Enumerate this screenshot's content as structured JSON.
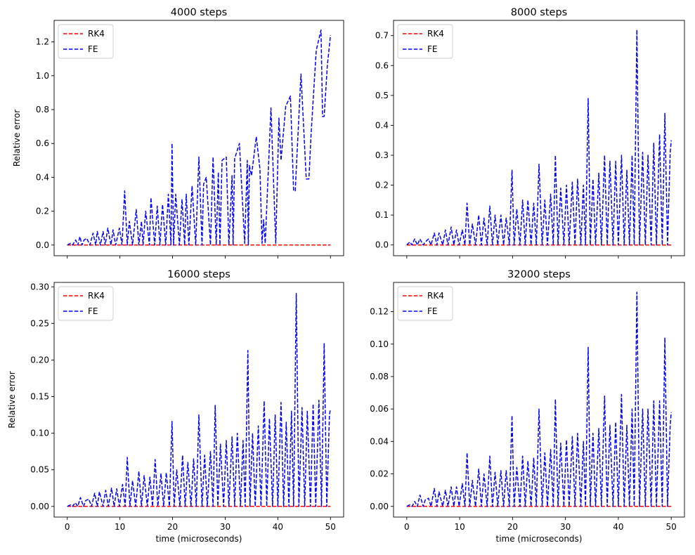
{
  "chart_data": [
    {
      "type": "line",
      "title": "4000 steps",
      "xlabel": "",
      "ylabel": "Relative error",
      "xlim": [
        -2.5,
        52.5
      ],
      "ylim": [
        -0.063,
        1.327
      ],
      "xticks": [
        0,
        10,
        20,
        30,
        40,
        50
      ],
      "xticklabels_visible": false,
      "yticks": [
        0.0,
        0.2,
        0.4,
        0.6,
        0.8,
        1.0,
        1.2
      ],
      "yticklabels": [
        "0.0",
        "0.2",
        "0.4",
        "0.6",
        "0.8",
        "1.0",
        "1.2"
      ],
      "legend_position": "top-left",
      "series": [
        {
          "name": "RK4",
          "color": "#ff0000",
          "style": "dashed",
          "x": [
            0,
            50
          ],
          "y": [
            0,
            0
          ]
        },
        {
          "name": "FE",
          "color": "#0000ff",
          "style": "dashed",
          "x": [
            0,
            0.6,
            1.0,
            1.6,
            2.0,
            2.4,
            2.8,
            3.2,
            3.7,
            4.3,
            4.9,
            5.4,
            5.7,
            6.3,
            6.8,
            7.2,
            7.7,
            8.3,
            8.7,
            9.2,
            9.9,
            10.4,
            10.9,
            11.4,
            11.8,
            12.4,
            13.1,
            13.6,
            14.1,
            14.4,
            14.9,
            15.6,
            15.9,
            16.6,
            17.1,
            17.6,
            18.1,
            18.7,
            19.2,
            19.7,
            19.9,
            20.2,
            20.6,
            21.3,
            21.8,
            22.3,
            22.6,
            23.1,
            23.7,
            24.4,
            25.0,
            25.6,
            25.9,
            26.4,
            27.2,
            27.7,
            28.3,
            28.7,
            29.0,
            29.4,
            30.2,
            30.7,
            31.3,
            31.5,
            31.8,
            32.7,
            33.7,
            34.2,
            34.4,
            34.6,
            35.0,
            35.9,
            36.6,
            37.0,
            37.3,
            37.6,
            38.7,
            39.6,
            40.2,
            40.6,
            41.5,
            42.4,
            43.0,
            43.3,
            44.4,
            45.4,
            45.9,
            46.3,
            47.3,
            48.2,
            48.5,
            48.8,
            49.4,
            50.0
          ],
          "y": [
            0,
            0.01,
            0.0,
            0.03,
            0.0,
            0.05,
            0.0,
            0.03,
            0.04,
            0.0,
            0.07,
            0.0,
            0.08,
            0.0,
            0.08,
            0.0,
            0.1,
            0.0,
            0.09,
            0.0,
            0.1,
            0.0,
            0.32,
            0.0,
            0.14,
            0.0,
            0.21,
            0.0,
            0.14,
            0.0,
            0.2,
            0.0,
            0.28,
            0.0,
            0.23,
            0.0,
            0.24,
            0.0,
            0.3,
            0.0,
            0.6,
            0.0,
            0.3,
            0.0,
            0.27,
            0.0,
            0.3,
            0.0,
            0.35,
            0.0,
            0.52,
            0.0,
            0.36,
            0.4,
            0.0,
            0.52,
            0.0,
            0.43,
            0.0,
            0.5,
            0.52,
            0.0,
            0.41,
            0.0,
            0.51,
            0.6,
            0.01,
            0.5,
            0.0,
            0.47,
            0.41,
            0.64,
            0.45,
            0.01,
            0.15,
            0.01,
            0.81,
            0.01,
            0.75,
            0.5,
            0.82,
            0.88,
            0.32,
            0.32,
            1.01,
            0.39,
            0.39,
            0.65,
            1.15,
            1.27,
            0.76,
            0.76,
            1.06,
            1.24
          ]
        }
      ]
    },
    {
      "type": "line",
      "title": "8000 steps",
      "xlabel": "",
      "ylabel": "",
      "xlim": [
        -2.5,
        52.5
      ],
      "ylim": [
        -0.036,
        0.751
      ],
      "xticks": [
        0,
        10,
        20,
        30,
        40,
        50
      ],
      "xticklabels_visible": false,
      "yticks": [
        0.0,
        0.1,
        0.2,
        0.3,
        0.4,
        0.5,
        0.6,
        0.7
      ],
      "yticklabels": [
        "0.0",
        "0.1",
        "0.2",
        "0.3",
        "0.4",
        "0.5",
        "0.6",
        "0.7"
      ],
      "legend_position": "top-left",
      "series": [
        {
          "name": "RK4",
          "color": "#ff0000",
          "style": "dashed",
          "x": [
            0,
            50
          ],
          "y": [
            0,
            0
          ]
        },
        {
          "name": "FE",
          "color": "#0000ff",
          "style": "dashed",
          "x": [
            0,
            0.6,
            1.0,
            1.5,
            2.0,
            2.5,
            3.1,
            3.5,
            4.1,
            4.6,
            5.2,
            5.7,
            6.1,
            6.8,
            7.3,
            7.8,
            8.4,
            8.9,
            9.4,
            9.9,
            10.5,
            11.0,
            11.4,
            11.9,
            12.4,
            13.0,
            13.6,
            14.1,
            14.6,
            15.2,
            15.7,
            16.2,
            16.7,
            17.2,
            17.8,
            18.3,
            18.8,
            19.4,
            19.9,
            20.3,
            20.8,
            21.4,
            21.9,
            22.4,
            22.9,
            23.5,
            24.0,
            24.5,
            25.0,
            25.6,
            26.1,
            26.6,
            27.2,
            27.7,
            28.1,
            28.6,
            29.1,
            29.7,
            30.2,
            30.7,
            31.3,
            31.8,
            32.3,
            32.9,
            33.4,
            33.8,
            34.3,
            34.7,
            35.2,
            35.7,
            36.3,
            36.8,
            37.4,
            37.9,
            38.4,
            39.0,
            39.5,
            40.0,
            40.6,
            41.1,
            41.6,
            42.1,
            42.6,
            43.0,
            43.5,
            44.0,
            44.6,
            45.1,
            45.6,
            46.2,
            46.7,
            47.2,
            47.8,
            48.3,
            48.8,
            49.3,
            49.8,
            50.0
          ],
          "y": [
            0,
            0.01,
            0.0,
            0.02,
            0.0,
            0.02,
            0.0,
            0.01,
            0.02,
            0.0,
            0.04,
            0.0,
            0.04,
            0.0,
            0.05,
            0.0,
            0.06,
            0.0,
            0.05,
            0.0,
            0.05,
            0.0,
            0.14,
            0.0,
            0.07,
            0.0,
            0.1,
            0.0,
            0.09,
            0.0,
            0.13,
            0.0,
            0.1,
            0.0,
            0.1,
            0.0,
            0.09,
            0.0,
            0.25,
            0.0,
            0.12,
            0.0,
            0.15,
            0.0,
            0.15,
            0.0,
            0.14,
            0.0,
            0.27,
            0.0,
            0.15,
            0.0,
            0.17,
            0.0,
            0.3,
            0.0,
            0.19,
            0.0,
            0.2,
            0.0,
            0.21,
            0.0,
            0.22,
            0.0,
            0.2,
            0.0,
            0.49,
            0.0,
            0.22,
            0.0,
            0.24,
            0.0,
            0.3,
            0.0,
            0.28,
            0.0,
            0.28,
            0.0,
            0.3,
            0.0,
            0.25,
            0.0,
            0.3,
            0.0,
            0.72,
            0.0,
            0.31,
            0.0,
            0.3,
            0.0,
            0.34,
            0.0,
            0.37,
            0.0,
            0.44,
            0.0,
            0.31,
            0.35
          ]
        }
      ]
    },
    {
      "type": "line",
      "title": "16000 steps",
      "xlabel": "time (microseconds)",
      "ylabel": "Relative error",
      "xlim": [
        -2.5,
        52.5
      ],
      "ylim": [
        -0.0146,
        0.306
      ],
      "xticks": [
        0,
        10,
        20,
        30,
        40,
        50
      ],
      "xticklabels": [
        "0",
        "10",
        "20",
        "30",
        "40",
        "50"
      ],
      "xticklabels_visible": true,
      "yticks": [
        0.0,
        0.05,
        0.1,
        0.15,
        0.2,
        0.25,
        0.3
      ],
      "yticklabels": [
        "0.00",
        "0.05",
        "0.10",
        "0.15",
        "0.20",
        "0.25",
        "0.30"
      ],
      "legend_position": "top-left",
      "series": [
        {
          "name": "RK4",
          "color": "#ff0000",
          "style": "dashed",
          "x": [
            0,
            50
          ],
          "y": [
            0,
            0
          ]
        },
        {
          "name": "FE",
          "color": "#0000ff",
          "style": "dashed",
          "x": [
            0,
            0.6,
            1.0,
            1.5,
            2.0,
            2.5,
            3.1,
            3.5,
            4.1,
            4.6,
            5.2,
            5.7,
            6.1,
            6.8,
            7.3,
            7.8,
            8.4,
            8.9,
            9.4,
            9.9,
            10.5,
            11.0,
            11.4,
            11.9,
            12.4,
            13.0,
            13.6,
            14.1,
            14.6,
            15.2,
            15.7,
            16.2,
            16.7,
            17.2,
            17.8,
            18.3,
            18.8,
            19.4,
            19.9,
            20.3,
            20.8,
            21.4,
            21.9,
            22.4,
            22.9,
            23.5,
            24.0,
            24.5,
            25.0,
            25.6,
            26.1,
            26.6,
            27.2,
            27.7,
            28.1,
            28.6,
            29.1,
            29.7,
            30.2,
            30.7,
            31.3,
            31.8,
            32.3,
            32.9,
            33.4,
            33.8,
            34.3,
            34.7,
            35.2,
            35.7,
            36.3,
            36.8,
            37.4,
            37.9,
            38.4,
            39.0,
            39.5,
            40.0,
            40.6,
            41.1,
            41.6,
            42.1,
            42.6,
            43.0,
            43.5,
            44.0,
            44.6,
            45.1,
            45.6,
            46.2,
            46.7,
            47.2,
            47.8,
            48.3,
            48.8,
            49.3,
            49.8,
            50.0
          ],
          "y": [
            0,
            0.002,
            0.0,
            0.005,
            0.0,
            0.012,
            0.0,
            0.008,
            0.01,
            0.0,
            0.018,
            0.0,
            0.02,
            0.0,
            0.022,
            0.0,
            0.025,
            0.0,
            0.024,
            0.0,
            0.03,
            0.0,
            0.067,
            0.0,
            0.035,
            0.0,
            0.048,
            0.0,
            0.042,
            0.0,
            0.04,
            0.0,
            0.064,
            0.0,
            0.045,
            0.0,
            0.046,
            0.0,
            0.116,
            0.0,
            0.05,
            0.0,
            0.07,
            0.0,
            0.06,
            0.0,
            0.065,
            0.0,
            0.125,
            0.0,
            0.07,
            0.0,
            0.075,
            0.0,
            0.138,
            0.0,
            0.085,
            0.0,
            0.09,
            0.0,
            0.095,
            0.0,
            0.1,
            0.0,
            0.09,
            0.0,
            0.213,
            0.0,
            0.1,
            0.0,
            0.11,
            0.0,
            0.144,
            0.0,
            0.12,
            0.0,
            0.125,
            0.0,
            0.142,
            0.0,
            0.115,
            0.0,
            0.13,
            0.0,
            0.291,
            0.0,
            0.135,
            0.0,
            0.13,
            0.0,
            0.14,
            0.0,
            0.145,
            0.0,
            0.223,
            0.0,
            0.125,
            0.133
          ]
        }
      ]
    },
    {
      "type": "line",
      "title": "32000 steps",
      "xlabel": "time (microseconds)",
      "ylabel": "",
      "xlim": [
        -2.5,
        52.5
      ],
      "ylim": [
        -0.0066,
        0.138
      ],
      "xticks": [
        0,
        10,
        20,
        30,
        40,
        50
      ],
      "xticklabels": [
        "0",
        "10",
        "20",
        "30",
        "40",
        "50"
      ],
      "xticklabels_visible": true,
      "yticks": [
        0.0,
        0.02,
        0.04,
        0.06,
        0.08,
        0.1,
        0.12
      ],
      "yticklabels": [
        "0.00",
        "0.02",
        "0.04",
        "0.06",
        "0.08",
        "0.10",
        "0.12"
      ],
      "legend_position": "top-left",
      "series": [
        {
          "name": "RK4",
          "color": "#ff0000",
          "style": "dashed",
          "x": [
            0,
            50
          ],
          "y": [
            0,
            0
          ]
        },
        {
          "name": "FE",
          "color": "#0000ff",
          "style": "dashed",
          "x": [
            0,
            0.6,
            1.0,
            1.5,
            2.0,
            2.5,
            3.1,
            3.5,
            4.1,
            4.6,
            5.2,
            5.7,
            6.1,
            6.8,
            7.3,
            7.8,
            8.4,
            8.9,
            9.4,
            9.9,
            10.5,
            11.0,
            11.4,
            11.9,
            12.4,
            13.0,
            13.6,
            14.1,
            14.6,
            15.2,
            15.7,
            16.2,
            16.7,
            17.2,
            17.8,
            18.3,
            18.8,
            19.4,
            19.9,
            20.3,
            20.8,
            21.4,
            21.9,
            22.4,
            22.9,
            23.5,
            24.0,
            24.5,
            25.0,
            25.6,
            26.1,
            26.6,
            27.2,
            27.7,
            28.1,
            28.6,
            29.1,
            29.7,
            30.2,
            30.7,
            31.3,
            31.8,
            32.3,
            32.9,
            33.4,
            33.8,
            34.3,
            34.7,
            35.2,
            35.7,
            36.3,
            36.8,
            37.4,
            37.9,
            38.4,
            39.0,
            39.5,
            40.0,
            40.6,
            41.1,
            41.6,
            42.1,
            42.6,
            43.0,
            43.5,
            44.0,
            44.6,
            45.1,
            45.6,
            46.2,
            46.7,
            47.2,
            47.8,
            48.3,
            48.8,
            49.3,
            49.8,
            50.0
          ],
          "y": [
            0,
            0.001,
            0.0,
            0.003,
            0.0,
            0.007,
            0.0,
            0.004,
            0.005,
            0.0,
            0.011,
            0.0,
            0.009,
            0.0,
            0.01,
            0.0,
            0.012,
            0.0,
            0.012,
            0.0,
            0.014,
            0.0,
            0.033,
            0.0,
            0.016,
            0.0,
            0.023,
            0.0,
            0.02,
            0.0,
            0.031,
            0.0,
            0.021,
            0.0,
            0.022,
            0.0,
            0.022,
            0.0,
            0.056,
            0.0,
            0.024,
            0.0,
            0.031,
            0.0,
            0.028,
            0.0,
            0.03,
            0.0,
            0.06,
            0.0,
            0.033,
            0.0,
            0.035,
            0.0,
            0.066,
            0.0,
            0.039,
            0.0,
            0.041,
            0.0,
            0.043,
            0.0,
            0.045,
            0.0,
            0.04,
            0.0,
            0.098,
            0.0,
            0.045,
            0.0,
            0.048,
            0.0,
            0.068,
            0.0,
            0.05,
            0.0,
            0.052,
            0.0,
            0.069,
            0.0,
            0.05,
            0.0,
            0.06,
            0.0,
            0.132,
            0.0,
            0.06,
            0.0,
            0.06,
            0.0,
            0.065,
            0.0,
            0.065,
            0.0,
            0.104,
            0.0,
            0.05,
            0.058
          ]
        }
      ]
    }
  ]
}
